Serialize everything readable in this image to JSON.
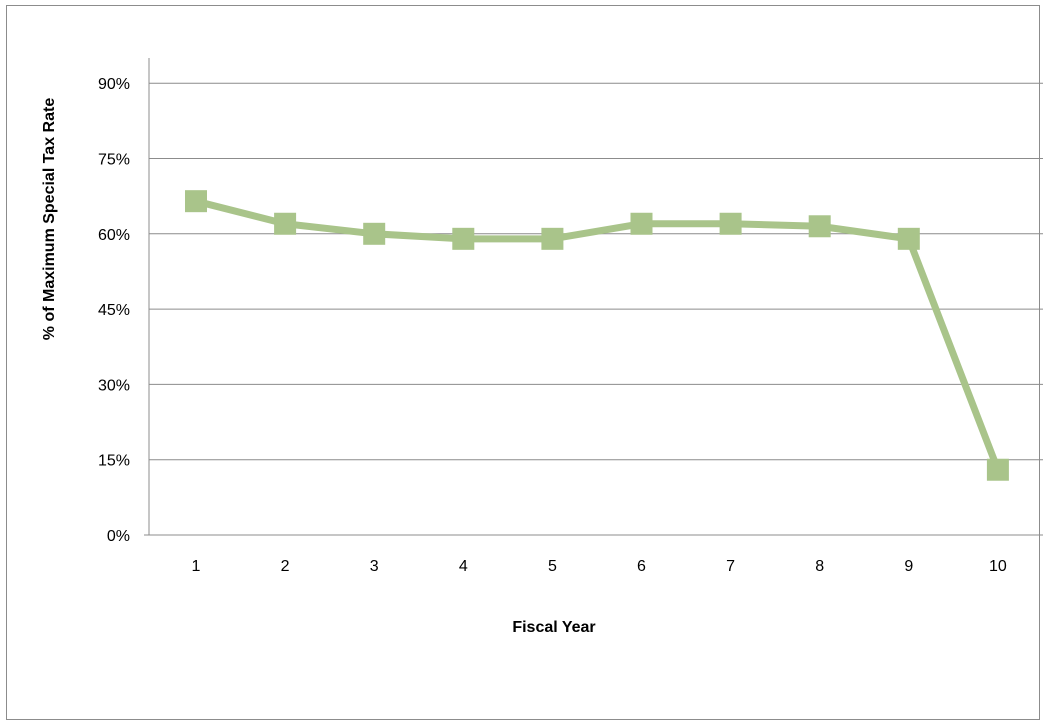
{
  "chart_data": {
    "type": "line",
    "title": "",
    "xlabel": "Fiscal Year",
    "ylabel": "% of Maximum  Special Tax Rate",
    "categories": [
      "1",
      "2",
      "3",
      "4",
      "5",
      "6",
      "7",
      "8",
      "9",
      "10"
    ],
    "series": [
      {
        "values": [
          66.5,
          62.0,
          60.0,
          59.0,
          59.0,
          62.0,
          62.0,
          61.5,
          59.0,
          13.0
        ],
        "color": "#a9c48a",
        "marker": "square"
      }
    ],
    "ylim": [
      0,
      100
    ],
    "yticks": [
      0,
      15,
      30,
      45,
      60,
      75,
      90
    ],
    "ytick_labels": [
      "0%",
      "15%",
      "30%",
      "45%",
      "60%",
      "75%",
      "90%"
    ],
    "grid": true,
    "legend": "none"
  }
}
